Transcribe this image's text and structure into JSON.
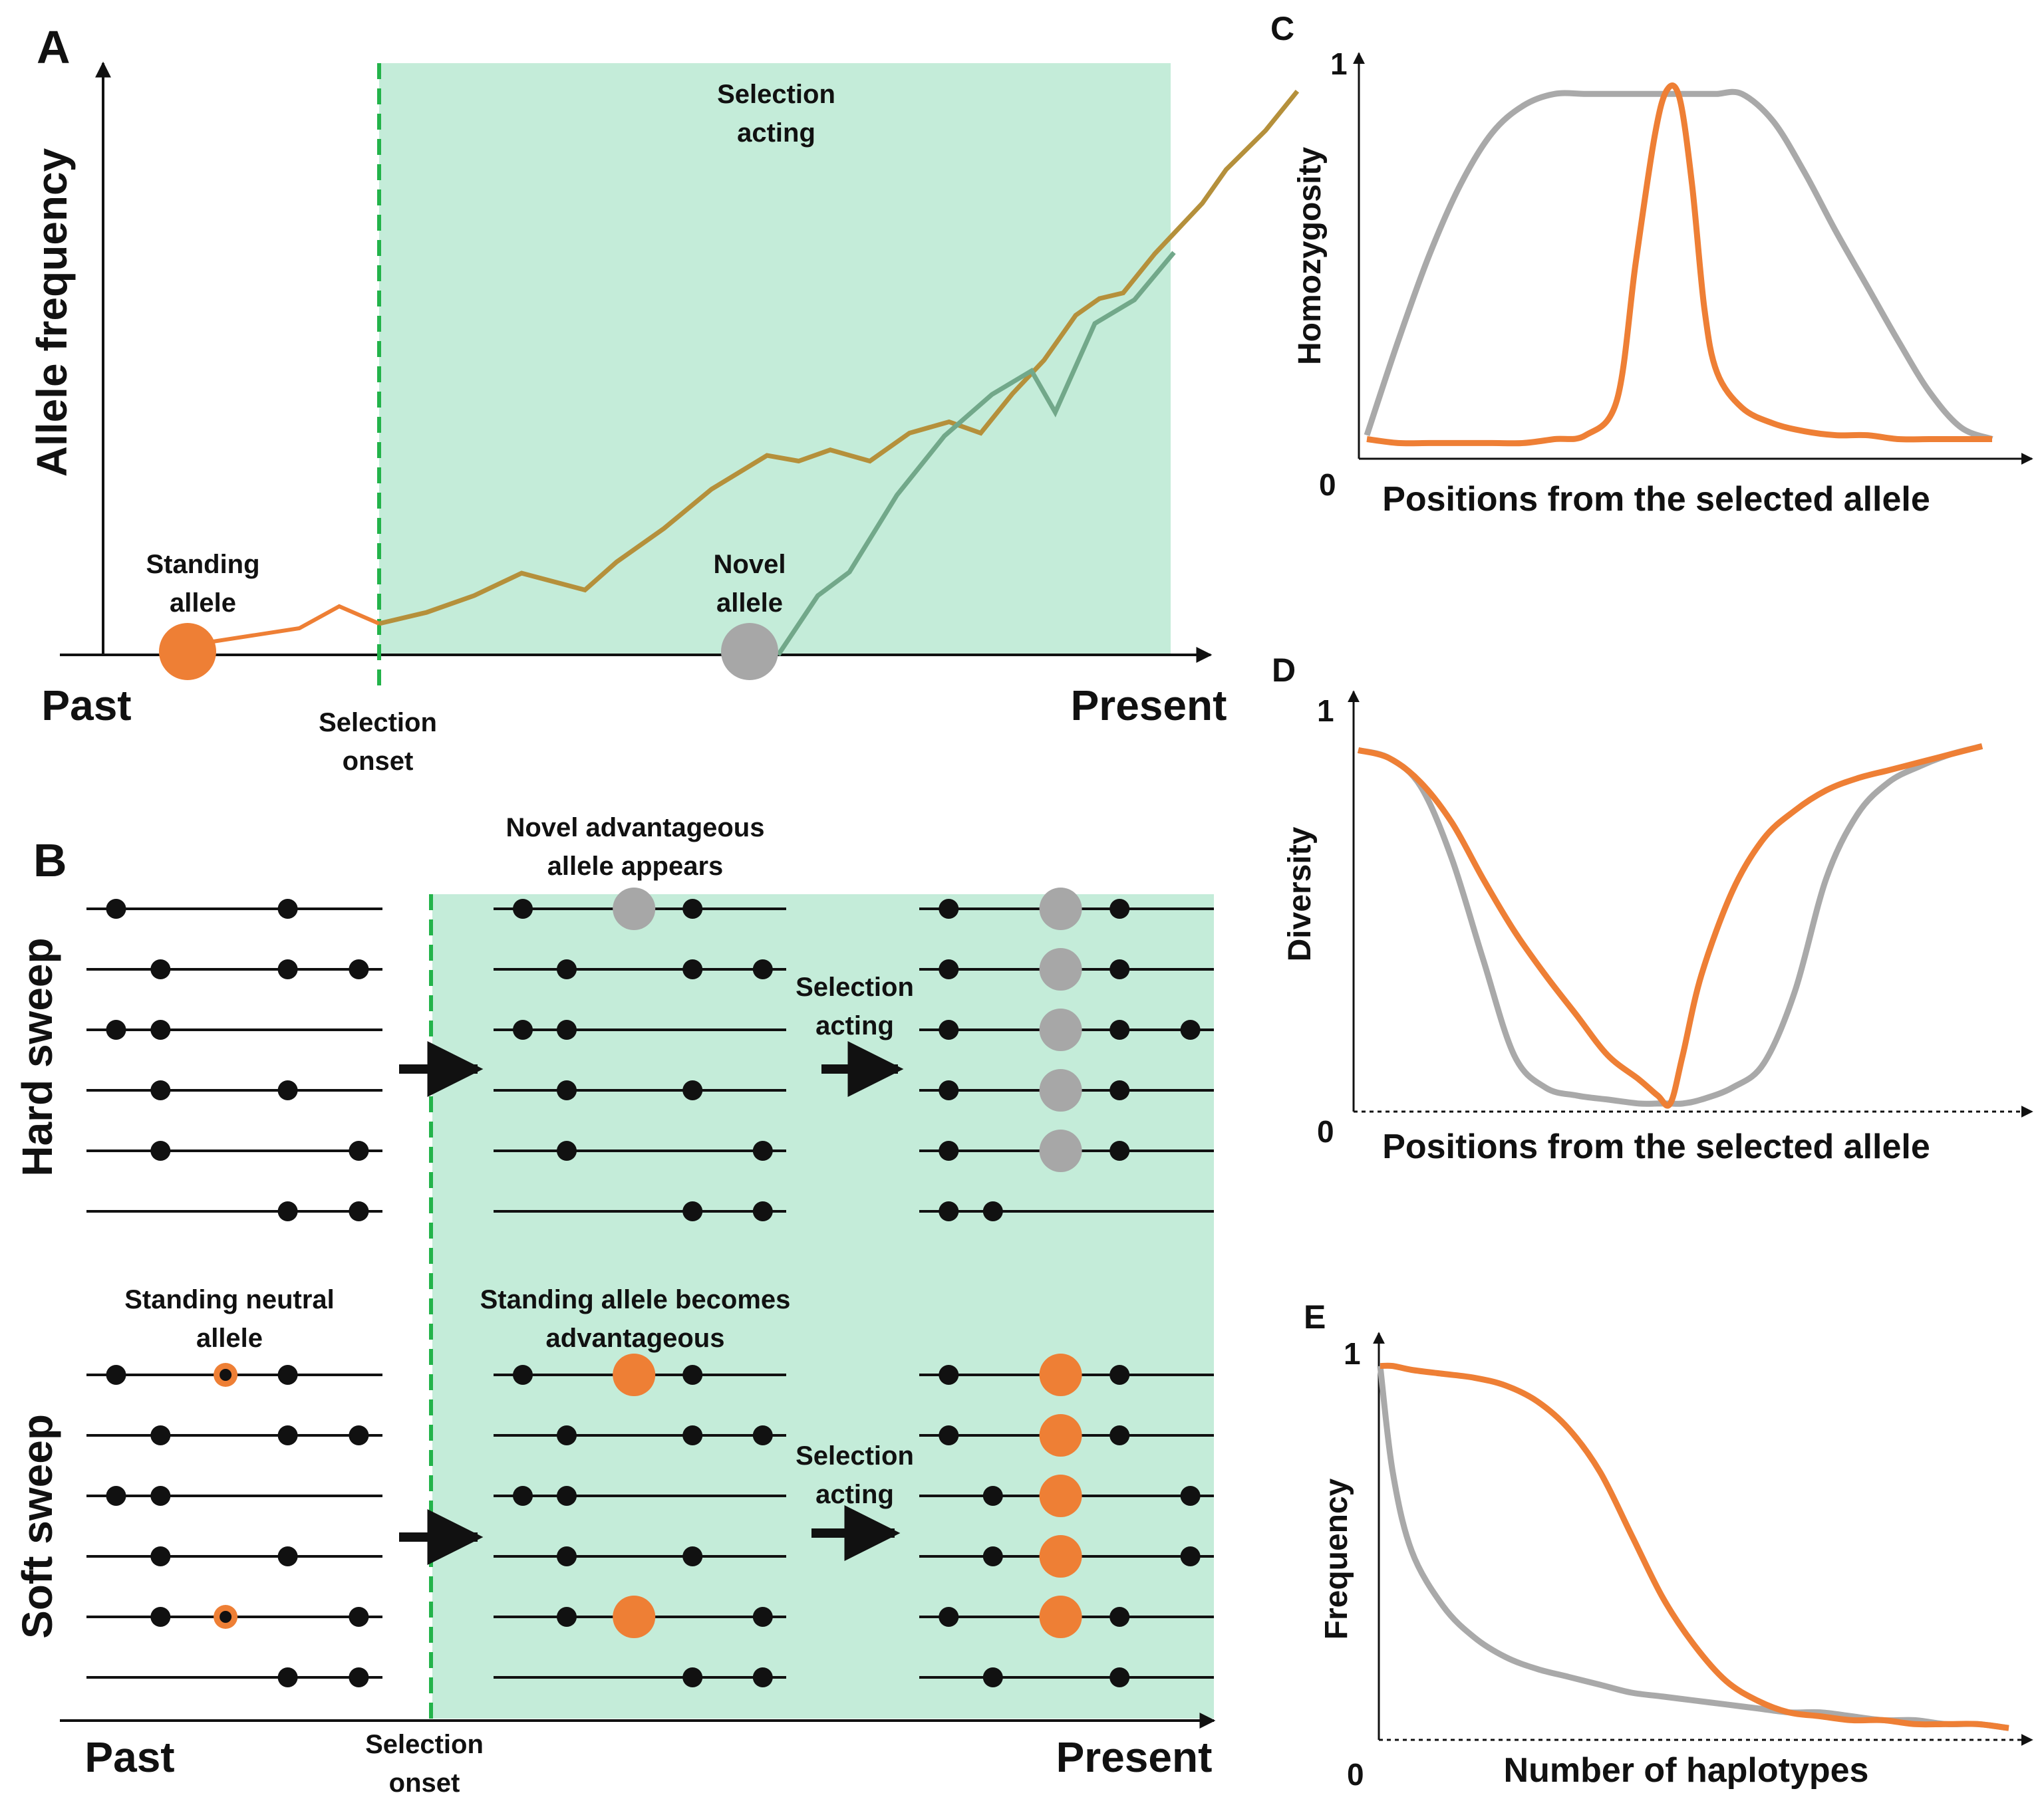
{
  "colors": {
    "selection_shade": "#c4ecd9",
    "onset_line": "#23b34a",
    "standing": "#ee7f35",
    "novel": "#a7a7a7",
    "standing_trace": "#b5903b",
    "novel_trace": "#72a88a",
    "curve_orange": "#ee7f35",
    "curve_gray": "#a9a9a9"
  },
  "panel_a": {
    "letter": "A",
    "y_label": "Allele frequency",
    "x_start": "Past",
    "x_end": "Present",
    "shade_label": [
      "Selection",
      "acting"
    ],
    "onset_label": [
      "Selection",
      "onset"
    ],
    "standing_label": [
      "Standing",
      "allele"
    ],
    "novel_label": [
      "Novel",
      "allele"
    ],
    "traces": {
      "standing_path": [
        [
          0.0,
          0.0
        ],
        [
          0.06,
          0.02
        ],
        [
          0.12,
          0.05
        ],
        [
          0.18,
          0.09
        ],
        [
          0.26,
          0.06
        ],
        [
          0.3,
          0.11
        ],
        [
          0.36,
          0.17
        ],
        [
          0.42,
          0.24
        ],
        [
          0.49,
          0.3
        ],
        [
          0.53,
          0.29
        ],
        [
          0.57,
          0.31
        ],
        [
          0.62,
          0.29
        ],
        [
          0.67,
          0.34
        ],
        [
          0.72,
          0.36
        ],
        [
          0.76,
          0.34
        ],
        [
          0.8,
          0.41
        ],
        [
          0.84,
          0.47
        ],
        [
          0.88,
          0.55
        ],
        [
          0.91,
          0.58
        ],
        [
          0.94,
          0.59
        ],
        [
          0.98,
          0.66
        ],
        [
          1.0,
          0.69
        ],
        [
          1.04,
          0.75
        ],
        [
          1.07,
          0.81
        ],
        [
          1.12,
          0.88
        ],
        [
          1.16,
          0.95
        ]
      ],
      "novel_path": [
        [
          0.0,
          0.0
        ],
        [
          0.05,
          0.1
        ],
        [
          0.09,
          0.14
        ],
        [
          0.15,
          0.27
        ],
        [
          0.21,
          0.37
        ],
        [
          0.27,
          0.44
        ],
        [
          0.32,
          0.48
        ],
        [
          0.35,
          0.41
        ],
        [
          0.4,
          0.56
        ],
        [
          0.45,
          0.6
        ],
        [
          0.5,
          0.68
        ]
      ]
    }
  },
  "panel_b": {
    "letter": "B",
    "x_start": "Past",
    "x_end": "Present",
    "onset_label": [
      "Selection",
      "onset"
    ],
    "hard": {
      "row_label": "Hard sweep",
      "top_note": [
        "Novel advantageous",
        "allele appears"
      ],
      "arrow_label": [
        "Selection",
        "acting"
      ]
    },
    "soft": {
      "row_label": "Soft sweep",
      "left_note": [
        "Standing neutral",
        "allele"
      ],
      "top_note": [
        "Standing allele becomes",
        "advantageous"
      ],
      "arrow_label": [
        "Selection",
        "acting"
      ]
    },
    "haplotypes": {
      "hard_before": [
        [
          0.1,
          0.68
        ],
        [
          0.25,
          0.68,
          0.92
        ],
        [
          0.1,
          0.25
        ],
        [
          0.25,
          0.68
        ],
        [
          0.25,
          0.92
        ],
        [
          0.68,
          0.92
        ]
      ],
      "hard_mid": [
        [
          0.1,
          0.68
        ],
        [
          0.25,
          0.68,
          0.92
        ],
        [
          0.1,
          0.25
        ],
        [
          0.25,
          0.68
        ],
        [
          0.25,
          0.92
        ],
        [
          0.68,
          0.92
        ]
      ],
      "hard_after": [
        [
          0.1,
          0.68
        ],
        [
          0.1,
          0.68
        ],
        [
          0.1,
          0.68,
          0.92
        ],
        [
          0.1,
          0.68
        ],
        [
          0.1,
          0.68
        ],
        [
          0.1,
          0.25
        ]
      ],
      "soft_before": [
        [
          0.1,
          0.68
        ],
        [
          0.25,
          0.68,
          0.92
        ],
        [
          0.1,
          0.25
        ],
        [
          0.25,
          0.68
        ],
        [
          0.25,
          0.92
        ],
        [
          0.68,
          0.92
        ]
      ],
      "soft_mid": [
        [
          0.1,
          0.68
        ],
        [
          0.25,
          0.68,
          0.92
        ],
        [
          0.1,
          0.25
        ],
        [
          0.25,
          0.68
        ],
        [
          0.25,
          0.92
        ],
        [
          0.68,
          0.92
        ]
      ],
      "soft_after": [
        [
          0.1,
          0.68
        ],
        [
          0.1,
          0.68
        ],
        [
          0.25,
          0.92
        ],
        [
          0.25,
          0.92
        ],
        [
          0.1,
          0.68
        ],
        [
          0.25,
          0.68
        ]
      ]
    },
    "marked_rows": {
      "hard_mid": [
        0
      ],
      "hard_after": [
        0,
        1,
        2,
        3,
        4
      ],
      "soft_before": [
        0,
        4
      ],
      "soft_mid": [
        0,
        4
      ],
      "soft_after": [
        0,
        1,
        2,
        3,
        4
      ]
    },
    "marked_position": {
      "hard_mid": 0.48,
      "hard_after": 0.48,
      "soft_before": 0.47,
      "soft_mid": 0.48,
      "soft_after": 0.48
    }
  },
  "panel_c": {
    "letter": "C",
    "y_label": "Homozygosity",
    "x_label": "Positions from the selected allele",
    "y_max": "1",
    "y_min": "0",
    "chart_data": {
      "type": "line",
      "x": [
        0,
        0.05,
        0.1,
        0.15,
        0.2,
        0.25,
        0.3,
        0.35,
        0.4,
        0.43,
        0.46,
        0.48,
        0.5,
        0.52,
        0.54,
        0.56,
        0.6,
        0.65,
        0.7,
        0.75,
        0.8,
        0.85,
        0.9,
        0.95,
        1.0
      ],
      "series": [
        {
          "name": "gray",
          "values": [
            0.06,
            0.3,
            0.52,
            0.7,
            0.83,
            0.9,
            0.93,
            0.93,
            0.93,
            0.93,
            0.93,
            0.93,
            0.93,
            0.93,
            0.93,
            0.93,
            0.93,
            0.86,
            0.73,
            0.58,
            0.44,
            0.3,
            0.17,
            0.08,
            0.05
          ]
        },
        {
          "name": "orange",
          "values": [
            0.05,
            0.04,
            0.04,
            0.04,
            0.04,
            0.04,
            0.05,
            0.06,
            0.15,
            0.5,
            0.82,
            0.94,
            0.92,
            0.7,
            0.38,
            0.22,
            0.13,
            0.09,
            0.07,
            0.06,
            0.06,
            0.05,
            0.05,
            0.05,
            0.05
          ]
        }
      ],
      "xlabel": "Positions from the selected allele",
      "ylabel": "Homozygosity",
      "ylim": [
        0,
        1
      ]
    }
  },
  "panel_d": {
    "letter": "D",
    "y_label": "Diversity",
    "x_label": "Positions from the selected allele",
    "y_max": "1",
    "y_min": "0",
    "chart_data": {
      "type": "line",
      "x": [
        0,
        0.05,
        0.1,
        0.15,
        0.2,
        0.25,
        0.3,
        0.35,
        0.4,
        0.45,
        0.48,
        0.5,
        0.52,
        0.55,
        0.6,
        0.65,
        0.7,
        0.75,
        0.8,
        0.85,
        0.9,
        0.95,
        1.0
      ],
      "series": [
        {
          "name": "gray",
          "values": [
            0.9,
            0.88,
            0.81,
            0.63,
            0.38,
            0.14,
            0.06,
            0.04,
            0.03,
            0.02,
            0.02,
            0.02,
            0.02,
            0.03,
            0.06,
            0.12,
            0.3,
            0.58,
            0.74,
            0.82,
            0.86,
            0.89,
            0.91
          ]
        },
        {
          "name": "orange",
          "values": [
            0.9,
            0.88,
            0.82,
            0.72,
            0.58,
            0.45,
            0.34,
            0.24,
            0.14,
            0.08,
            0.04,
            0.02,
            0.14,
            0.34,
            0.55,
            0.68,
            0.75,
            0.8,
            0.83,
            0.85,
            0.87,
            0.89,
            0.91
          ]
        }
      ],
      "xlabel": "Positions from the selected allele",
      "ylabel": "Diversity",
      "ylim": [
        0,
        1
      ]
    }
  },
  "panel_e": {
    "letter": "E",
    "y_label": "Frequency",
    "x_label": "Number of haplotypes",
    "y_max": "1",
    "y_min": "0",
    "chart_data": {
      "type": "line",
      "x": [
        0,
        0.02,
        0.05,
        0.1,
        0.15,
        0.2,
        0.25,
        0.3,
        0.35,
        0.4,
        0.45,
        0.5,
        0.55,
        0.6,
        0.65,
        0.7,
        0.75,
        0.8,
        0.85,
        0.9,
        0.95,
        1.0
      ],
      "series": [
        {
          "name": "gray",
          "values": [
            0.95,
            0.68,
            0.48,
            0.34,
            0.26,
            0.21,
            0.18,
            0.16,
            0.14,
            0.12,
            0.11,
            0.1,
            0.09,
            0.08,
            0.07,
            0.07,
            0.06,
            0.05,
            0.05,
            0.04,
            0.04,
            0.03
          ]
        },
        {
          "name": "orange",
          "values": [
            0.95,
            0.95,
            0.94,
            0.93,
            0.92,
            0.9,
            0.86,
            0.79,
            0.68,
            0.52,
            0.36,
            0.24,
            0.15,
            0.1,
            0.07,
            0.06,
            0.05,
            0.05,
            0.04,
            0.04,
            0.04,
            0.03
          ]
        }
      ],
      "xlabel": "Number of haplotypes",
      "ylabel": "Frequency",
      "ylim": [
        0,
        1
      ]
    }
  }
}
